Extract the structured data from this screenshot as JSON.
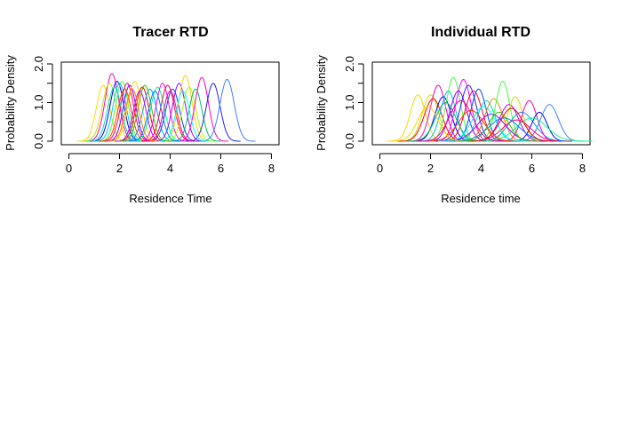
{
  "charts": [
    {
      "type": "line",
      "title": "Tracer RTD",
      "xlabel": "Residence Time",
      "ylabel": "Probability Density",
      "xlim": [
        -0.3,
        8.3
      ],
      "ylim": [
        0,
        2.0
      ],
      "xticks": [
        "0",
        "2",
        "4",
        "6",
        "8"
      ],
      "yticks": [
        "0.0",
        "1.0",
        "2.0"
      ],
      "curves": [
        {
          "mean": 1.35,
          "sd": 0.26,
          "peak": 1.45,
          "color": "#FFD700"
        },
        {
          "mean": 1.7,
          "sd": 0.27,
          "peak": 1.75,
          "color": "#FF00B0"
        },
        {
          "mean": 1.6,
          "sd": 0.28,
          "peak": 1.5,
          "color": "#C8E000"
        },
        {
          "mean": 1.9,
          "sd": 0.27,
          "peak": 1.55,
          "color": "#0000FF"
        },
        {
          "mean": 2.0,
          "sd": 0.26,
          "peak": 1.5,
          "color": "#00C0FF"
        },
        {
          "mean": 2.1,
          "sd": 0.25,
          "peak": 1.55,
          "color": "#40FF40"
        },
        {
          "mean": 2.3,
          "sd": 0.26,
          "peak": 1.5,
          "color": "#FF0070"
        },
        {
          "mean": 2.4,
          "sd": 0.25,
          "peak": 1.45,
          "color": "#8000FF"
        },
        {
          "mean": 2.6,
          "sd": 0.27,
          "peak": 1.55,
          "color": "#FFD700"
        },
        {
          "mean": 2.9,
          "sd": 0.26,
          "peak": 1.4,
          "color": "#FF0000"
        },
        {
          "mean": 3.2,
          "sd": 0.27,
          "peak": 1.35,
          "color": "#00A0FF"
        },
        {
          "mean": 3.5,
          "sd": 0.27,
          "peak": 1.4,
          "color": "#00FF80"
        },
        {
          "mean": 3.7,
          "sd": 0.26,
          "peak": 1.5,
          "color": "#FF00FF"
        },
        {
          "mean": 3.9,
          "sd": 0.27,
          "peak": 1.45,
          "color": "#FF0040"
        },
        {
          "mean": 4.1,
          "sd": 0.27,
          "peak": 1.35,
          "color": "#0040FF"
        },
        {
          "mean": 4.35,
          "sd": 0.26,
          "peak": 1.5,
          "color": "#A000FF"
        },
        {
          "mean": 4.6,
          "sd": 0.26,
          "peak": 1.7,
          "color": "#FFD000"
        },
        {
          "mean": 4.75,
          "sd": 0.26,
          "peak": 1.4,
          "color": "#A0FF00"
        },
        {
          "mean": 5.0,
          "sd": 0.25,
          "peak": 1.35,
          "color": "#00C060"
        },
        {
          "mean": 5.25,
          "sd": 0.26,
          "peak": 1.65,
          "color": "#FF00C0"
        },
        {
          "mean": 5.7,
          "sd": 0.27,
          "peak": 1.5,
          "color": "#2020FF"
        },
        {
          "mean": 6.25,
          "sd": 0.28,
          "peak": 1.6,
          "color": "#4080FF"
        },
        {
          "mean": 1.8,
          "sd": 0.27,
          "peak": 1.4,
          "color": "#00E0C0"
        },
        {
          "mean": 2.2,
          "sd": 0.26,
          "peak": 1.35,
          "color": "#FF4000"
        },
        {
          "mean": 2.8,
          "sd": 0.25,
          "peak": 1.3,
          "color": "#C000FF"
        },
        {
          "mean": 3.0,
          "sd": 0.26,
          "peak": 1.45,
          "color": "#40C000"
        },
        {
          "mean": 3.4,
          "sd": 0.26,
          "peak": 1.3,
          "color": "#0080FF"
        },
        {
          "mean": 4.0,
          "sd": 0.26,
          "peak": 1.3,
          "color": "#FF0090"
        },
        {
          "mean": 4.5,
          "sd": 0.26,
          "peak": 1.3,
          "color": "#00FFFF"
        },
        {
          "mean": 2.5,
          "sd": 0.26,
          "peak": 1.35,
          "color": "#FF8000"
        }
      ]
    },
    {
      "type": "line",
      "title": "Individual RTD",
      "xlabel": "Residence time",
      "ylabel": "Probability Density",
      "xlim": [
        -0.3,
        8.3
      ],
      "ylim": [
        0,
        2.0
      ],
      "xticks": [
        "0",
        "2",
        "4",
        "6",
        "8"
      ],
      "yticks": [
        "0.0",
        "1.0",
        "2.0"
      ],
      "curves": [
        {
          "mean": 1.5,
          "sd": 0.3,
          "peak": 1.2,
          "color": "#FFD700"
        },
        {
          "mean": 2.0,
          "sd": 0.32,
          "peak": 1.2,
          "color": "#C8E000"
        },
        {
          "mean": 2.3,
          "sd": 0.3,
          "peak": 1.45,
          "color": "#FF00B0"
        },
        {
          "mean": 2.1,
          "sd": 0.35,
          "peak": 1.1,
          "color": "#FF0000"
        },
        {
          "mean": 2.5,
          "sd": 0.32,
          "peak": 1.15,
          "color": "#0000FF"
        },
        {
          "mean": 2.7,
          "sd": 0.3,
          "peak": 1.3,
          "color": "#00C0FF"
        },
        {
          "mean": 2.9,
          "sd": 0.28,
          "peak": 1.65,
          "color": "#40FF40"
        },
        {
          "mean": 3.1,
          "sd": 0.33,
          "peak": 1.3,
          "color": "#8000FF"
        },
        {
          "mean": 3.3,
          "sd": 0.3,
          "peak": 1.6,
          "color": "#FF00FF"
        },
        {
          "mean": 3.5,
          "sd": 0.32,
          "peak": 1.45,
          "color": "#2020FF"
        },
        {
          "mean": 3.7,
          "sd": 0.34,
          "peak": 1.3,
          "color": "#FF0040"
        },
        {
          "mean": 3.9,
          "sd": 0.3,
          "peak": 1.35,
          "color": "#0040FF"
        },
        {
          "mean": 4.2,
          "sd": 0.35,
          "peak": 1.05,
          "color": "#00E0C0"
        },
        {
          "mean": 4.5,
          "sd": 0.35,
          "peak": 1.1,
          "color": "#FF8000"
        },
        {
          "mean": 4.85,
          "sd": 0.28,
          "peak": 1.55,
          "color": "#40FF40"
        },
        {
          "mean": 5.1,
          "sd": 0.38,
          "peak": 0.95,
          "color": "#C000FF"
        },
        {
          "mean": 5.35,
          "sd": 0.3,
          "peak": 1.15,
          "color": "#C8E000"
        },
        {
          "mean": 5.6,
          "sd": 0.5,
          "peak": 0.75,
          "color": "#00A0FF"
        },
        {
          "mean": 5.9,
          "sd": 0.3,
          "peak": 1.05,
          "color": "#FF00C0"
        },
        {
          "mean": 6.3,
          "sd": 0.3,
          "peak": 0.75,
          "color": "#0000FF"
        },
        {
          "mean": 6.7,
          "sd": 0.35,
          "peak": 0.95,
          "color": "#4080FF"
        },
        {
          "mean": 6.0,
          "sd": 0.6,
          "peak": 0.6,
          "color": "#00FF80"
        },
        {
          "mean": 5.4,
          "sd": 0.55,
          "peak": 0.55,
          "color": "#FF0070"
        },
        {
          "mean": 4.9,
          "sd": 0.6,
          "peak": 0.6,
          "color": "#0080FF"
        },
        {
          "mean": 4.4,
          "sd": 0.55,
          "peak": 0.7,
          "color": "#A000FF"
        },
        {
          "mean": 3.6,
          "sd": 0.5,
          "peak": 0.8,
          "color": "#FF4000"
        },
        {
          "mean": 2.6,
          "sd": 0.4,
          "peak": 1.0,
          "color": "#00C060"
        },
        {
          "mean": 1.9,
          "sd": 0.4,
          "peak": 0.9,
          "color": "#FFD000"
        },
        {
          "mean": 3.2,
          "sd": 0.45,
          "peak": 1.05,
          "color": "#FF0090"
        },
        {
          "mean": 4.1,
          "sd": 0.45,
          "peak": 0.9,
          "color": "#00FFFF"
        },
        {
          "mean": 5.2,
          "sd": 0.45,
          "peak": 0.85,
          "color": "#FF0000"
        },
        {
          "mean": 4.7,
          "sd": 0.4,
          "peak": 0.75,
          "color": "#40C000"
        }
      ]
    }
  ]
}
